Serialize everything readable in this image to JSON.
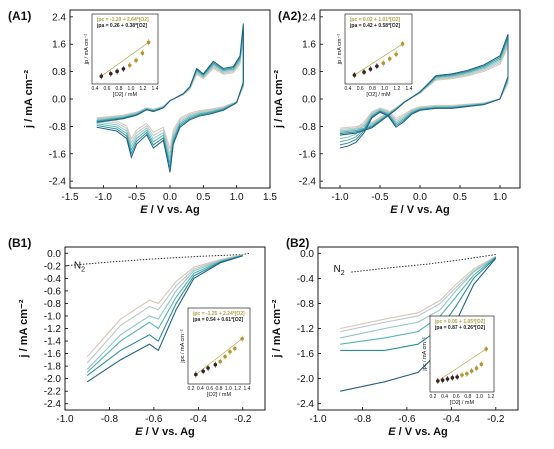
{
  "panels": [
    {
      "id": "A1",
      "label": "(A1)",
      "xlabel_italic": "E",
      "xlabel_rest": " / V vs. Ag",
      "ylabel": "j / mA cm⁻²",
      "xticks": [
        "-1.5",
        "-1.0",
        "-0.5",
        "0.0",
        "0.5",
        "1.0",
        "1.5"
      ],
      "yticks": [
        "2.4",
        "1.6",
        "0.8",
        "0.0",
        "-0.8",
        "-1.6",
        "-2.4"
      ],
      "inset": {
        "eq1": "jpc = -1.20 + 2.64*[O2]",
        "eq2": "jpa = 0.26 + 0.38*[O2]",
        "xlabel": "[O2] / mM",
        "ylabel": "jp / mA cm⁻²",
        "xticks": [
          "0.4",
          "0.6",
          "0.8",
          "1.0",
          "1.2",
          "1.4"
        ]
      }
    },
    {
      "id": "A2",
      "label": "(A2)",
      "xlabel_italic": "E",
      "xlabel_rest": " / V vs. Ag",
      "ylabel": "j / mA cm⁻²",
      "xticks": [
        "-1.0",
        "-0.5",
        "0.0",
        "0.5",
        "1.0"
      ],
      "yticks": [
        "2.4",
        "1.6",
        "0.8",
        "0.0",
        "-0.8",
        "-1.6",
        "-2.4"
      ],
      "inset": {
        "eq1": "jpc = 0.02 + 1.01*[O2]",
        "eq2": "jpa = 0.42 + 0.58*[O2]",
        "xlabel": "[O2] / mM",
        "ylabel": "jp / mA cm⁻²",
        "xticks": [
          "0.4",
          "0.6",
          "0.8",
          "1.0",
          "1.2",
          "1.4"
        ]
      }
    },
    {
      "id": "B1",
      "label": "(B1)",
      "n2": "N2",
      "xlabel_italic": "E",
      "xlabel_rest": " / V vs. Ag",
      "ylabel": "j / mA cm⁻²",
      "xticks": [
        "-1.0",
        "-0.8",
        "-0.6",
        "-0.4",
        "-0.2"
      ],
      "yticks": [
        "0.0",
        "-0.2",
        "-0.4",
        "-0.6",
        "-0.8",
        "-1.0",
        "-1.2",
        "-1.4",
        "-1.6",
        "-1.8",
        "-2.0",
        "-2.2",
        "-2.4"
      ],
      "inset": {
        "eq1": "jpc = -1.25 + 2.24*[O2]",
        "eq2": "jpa = 0.54 + 0.61*[O2]",
        "xlabel": "[O2] / mM",
        "ylabel": "jpc / mA cm⁻²",
        "xticks": [
          "0.2",
          "0.4",
          "0.6",
          "0.8",
          "1.0",
          "1.2",
          "1.4"
        ]
      }
    },
    {
      "id": "B2",
      "label": "(B2)",
      "n2": "N2",
      "xlabel_italic": "E",
      "xlabel_rest": " / V vs. Ag",
      "ylabel": "j / mA cm⁻²",
      "xticks": [
        "-1.0",
        "-0.8",
        "-0.6",
        "-0.4",
        "-0.2"
      ],
      "yticks": [
        "0.0",
        "-0.4",
        "-0.8",
        "-1.2",
        "-1.6",
        "-2.0",
        "-2.4"
      ],
      "inset": {
        "eq1": "jpc = 0.05 + 1.05*[O2]",
        "eq2": "jpa = 0.87 + 0.26*[O2]",
        "xlabel": "[O2] / mM",
        "ylabel": "jpc / mA cm⁻²",
        "xticks": [
          "0.2",
          "0.4",
          "0.6",
          "0.8",
          "1.0",
          "1.2"
        ]
      }
    }
  ],
  "colors": {
    "series": [
      "#d8c5b8",
      "#b9c9c6",
      "#90c6c4",
      "#55b3b2",
      "#2d8f9a",
      "#1d5f86"
    ],
    "inset_marker_dark": "#3a1f1a",
    "inset_marker_light": "#b8932e",
    "inset_fit": "#b4a84a"
  },
  "chart_data": [
    {
      "type": "line",
      "panel": "A1",
      "xlabel": "E / V vs. Ag",
      "ylabel": "j / mA cm-2",
      "xlim": [
        -1.5,
        1.5
      ],
      "ylim": [
        -2.6,
        2.6
      ],
      "x_label_values": [
        -1.5,
        -1.0,
        -0.5,
        0.0,
        0.5,
        1.0,
        1.5
      ],
      "y_label_values": [
        2.4,
        1.6,
        0.8,
        0.0,
        -0.8,
        -1.6,
        -2.4
      ],
      "series_count": 6,
      "forward_scan": {
        "E": [
          -1.1,
          -0.8,
          -0.65,
          -0.58,
          -0.5,
          -0.35,
          -0.25,
          -0.1,
          0.0,
          0.05,
          0.15,
          0.3,
          0.45,
          0.6,
          0.8,
          1.0,
          1.1
        ],
        "j": [
          -0.75,
          -0.85,
          -1.05,
          -1.55,
          -1.2,
          -0.95,
          -1.3,
          -1.1,
          -1.95,
          -1.2,
          -0.75,
          -0.55,
          -0.45,
          -0.4,
          -0.3,
          -0.1,
          0.45
        ]
      },
      "reverse_scan": {
        "E": [
          1.1,
          1.05,
          0.95,
          0.8,
          0.65,
          0.5,
          0.4,
          0.3,
          0.2,
          0.1,
          0.0,
          -0.1,
          -0.25,
          -0.35,
          -0.5,
          -0.6,
          -0.7,
          -0.9,
          -1.1
        ],
        "j": [
          2.1,
          1.2,
          0.9,
          0.85,
          1.05,
          0.7,
          0.85,
          0.35,
          0.15,
          0.05,
          -0.05,
          -0.25,
          -0.35,
          -0.3,
          -0.45,
          -0.5,
          -0.55,
          -0.6,
          -0.65
        ]
      },
      "inset_points": {
        "x": [
          0.55,
          0.7,
          0.8,
          0.9,
          1.0,
          1.1,
          1.2,
          1.3
        ],
        "y": [
          0.8,
          0.9,
          1.0,
          1.1,
          1.25,
          1.45,
          1.75,
          2.2
        ]
      }
    },
    {
      "type": "line",
      "panel": "A2",
      "xlabel": "E / V vs. Ag",
      "ylabel": "j / mA cm-2",
      "xlim": [
        -1.25,
        1.25
      ],
      "ylim": [
        -2.6,
        2.6
      ],
      "x_label_values": [
        -1.0,
        -0.5,
        0.0,
        0.5,
        1.0
      ],
      "y_label_values": [
        2.4,
        1.6,
        0.8,
        0.0,
        -0.8,
        -1.6,
        -2.4
      ],
      "series_count": 6,
      "forward_scan": {
        "E": [
          -1.0,
          -0.9,
          -0.8,
          -0.7,
          -0.6,
          -0.5,
          -0.4,
          -0.3,
          -0.2,
          -0.1,
          0.0,
          0.2,
          0.4,
          0.6,
          0.8,
          1.0,
          1.1
        ],
        "j": [
          -1.3,
          -1.25,
          -1.15,
          -0.9,
          -0.5,
          -0.35,
          -0.45,
          -0.75,
          -0.6,
          -0.4,
          -0.3,
          -0.25,
          -0.25,
          -0.2,
          -0.15,
          0.0,
          0.6
        ]
      },
      "reverse_scan": {
        "E": [
          1.1,
          1.0,
          0.8,
          0.6,
          0.4,
          0.2,
          0.0,
          -0.1,
          -0.2,
          -0.3,
          -0.45,
          -0.6,
          -0.8,
          -1.0
        ],
        "j": [
          1.8,
          1.2,
          0.95,
          0.8,
          0.7,
          0.65,
          0.2,
          0.05,
          -0.1,
          -0.3,
          -0.55,
          -0.8,
          -0.95,
          -1.0
        ]
      },
      "inset_points": {
        "x": [
          0.55,
          0.7,
          0.8,
          0.9,
          1.0,
          1.1,
          1.2,
          1.3
        ],
        "y": [
          0.75,
          0.85,
          0.95,
          1.05,
          1.15,
          1.3,
          1.45,
          1.8
        ]
      }
    },
    {
      "type": "line",
      "panel": "B1",
      "xlabel": "E / V vs. Ag",
      "ylabel": "j / mA cm-2",
      "xlim": [
        -1.0,
        -0.1
      ],
      "ylim": [
        -2.5,
        0.1
      ],
      "x_label_values": [
        -1.0,
        -0.8,
        -0.6,
        -0.4,
        -0.2
      ],
      "y_label_values": [
        0.0,
        -0.2,
        -0.4,
        -0.6,
        -0.8,
        -1.0,
        -1.2,
        -1.4,
        -1.6,
        -1.8,
        -2.0,
        -2.2,
        -2.4
      ],
      "n2_baseline": {
        "E": [
          -1.0,
          -0.8,
          -0.6,
          -0.4,
          -0.2,
          -0.17
        ],
        "j": [
          -0.2,
          -0.14,
          -0.09,
          -0.05,
          -0.02,
          0.0
        ]
      },
      "curves": [
        {
          "E": [
            -0.9,
            -0.75,
            -0.62,
            -0.58,
            -0.5,
            -0.42,
            -0.3,
            -0.2
          ],
          "j": [
            -1.65,
            -1.05,
            -0.75,
            -0.8,
            -0.45,
            -0.22,
            -0.1,
            -0.02
          ]
        },
        {
          "E": [
            -0.9,
            -0.75,
            -0.62,
            -0.58,
            -0.5,
            -0.42,
            -0.3,
            -0.2
          ],
          "j": [
            -1.75,
            -1.15,
            -0.85,
            -0.9,
            -0.52,
            -0.25,
            -0.11,
            -0.03
          ]
        },
        {
          "E": [
            -0.9,
            -0.75,
            -0.62,
            -0.58,
            -0.5,
            -0.42,
            -0.3,
            -0.2
          ],
          "j": [
            -1.85,
            -1.3,
            -1.0,
            -1.05,
            -0.6,
            -0.28,
            -0.12,
            -0.03
          ]
        },
        {
          "E": [
            -0.9,
            -0.75,
            -0.62,
            -0.58,
            -0.5,
            -0.42,
            -0.3,
            -0.2
          ],
          "j": [
            -1.9,
            -1.4,
            -1.1,
            -1.2,
            -0.7,
            -0.32,
            -0.13,
            -0.03
          ]
        },
        {
          "E": [
            -0.9,
            -0.75,
            -0.62,
            -0.58,
            -0.5,
            -0.42,
            -0.3,
            -0.2
          ],
          "j": [
            -1.95,
            -1.55,
            -1.3,
            -1.4,
            -0.8,
            -0.36,
            -0.14,
            -0.04
          ]
        },
        {
          "E": [
            -0.9,
            -0.75,
            -0.62,
            -0.58,
            -0.5,
            -0.42,
            -0.3,
            -0.2
          ],
          "j": [
            -2.05,
            -1.7,
            -1.45,
            -1.55,
            -0.9,
            -0.4,
            -0.15,
            -0.04
          ]
        }
      ],
      "inset_points": {
        "x": [
          0.35,
          0.5,
          0.6,
          0.75,
          0.85,
          0.95,
          1.05,
          1.15,
          1.3
        ],
        "y": [
          0.65,
          0.75,
          0.85,
          0.95,
          1.05,
          1.2,
          1.35,
          1.45,
          1.75
        ]
      }
    },
    {
      "type": "line",
      "panel": "B2",
      "xlabel": "E / V vs. Ag",
      "ylabel": "j / mA cm-2",
      "xlim": [
        -1.0,
        -0.1
      ],
      "ylim": [
        -2.5,
        0.1
      ],
      "x_label_values": [
        -1.0,
        -0.8,
        -0.6,
        -0.4,
        -0.2
      ],
      "y_label_values": [
        0.0,
        -0.4,
        -0.8,
        -1.2,
        -1.6,
        -2.0,
        -2.4
      ],
      "n2_baseline": {
        "E": [
          -0.85,
          -0.7,
          -0.5,
          -0.35,
          -0.2
        ],
        "j": [
          -0.3,
          -0.24,
          -0.17,
          -0.1,
          -0.02
        ]
      },
      "curves": [
        {
          "E": [
            -0.9,
            -0.7,
            -0.55,
            -0.45,
            -0.38,
            -0.3,
            -0.2
          ],
          "j": [
            -1.2,
            -1.05,
            -0.95,
            -0.75,
            -0.5,
            -0.25,
            -0.05
          ]
        },
        {
          "E": [
            -0.9,
            -0.7,
            -0.55,
            -0.45,
            -0.38,
            -0.3,
            -0.2
          ],
          "j": [
            -1.25,
            -1.1,
            -1.0,
            -0.8,
            -0.55,
            -0.28,
            -0.05
          ]
        },
        {
          "E": [
            -0.9,
            -0.7,
            -0.55,
            -0.45,
            -0.38,
            -0.3,
            -0.2
          ],
          "j": [
            -1.35,
            -1.2,
            -1.1,
            -0.9,
            -0.6,
            -0.3,
            -0.06
          ]
        },
        {
          "E": [
            -0.9,
            -0.7,
            -0.55,
            -0.45,
            -0.38,
            -0.3,
            -0.2
          ],
          "j": [
            -1.45,
            -1.35,
            -1.25,
            -1.0,
            -0.7,
            -0.35,
            -0.06
          ]
        },
        {
          "E": [
            -0.9,
            -0.7,
            -0.55,
            -0.45,
            -0.38,
            -0.3,
            -0.2
          ],
          "j": [
            -1.55,
            -1.55,
            -1.45,
            -1.2,
            -0.85,
            -0.4,
            -0.07
          ]
        },
        {
          "E": [
            -0.9,
            -0.7,
            -0.55,
            -0.45,
            -0.38,
            -0.3,
            -0.2
          ],
          "j": [
            -2.2,
            -2.05,
            -1.9,
            -1.55,
            -1.1,
            -0.5,
            -0.08
          ]
        }
      ],
      "inset_points": {
        "x": [
          0.15,
          0.25,
          0.35,
          0.45,
          0.55,
          0.65,
          0.75,
          0.85,
          0.95,
          1.05,
          1.15
        ],
        "y": [
          0.3,
          0.32,
          0.35,
          0.38,
          0.4,
          0.45,
          0.48,
          0.55,
          0.62,
          0.72,
          1.1
        ]
      }
    }
  ]
}
